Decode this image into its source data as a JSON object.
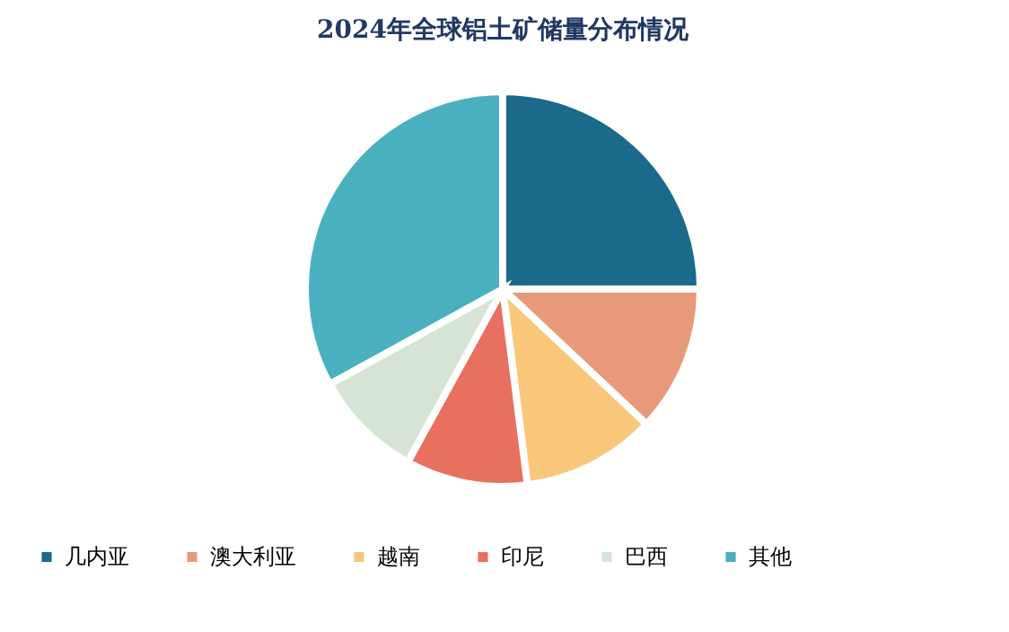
{
  "chart_data": {
    "type": "pie",
    "title": "2024年全球铝土矿储量分布情况",
    "categories": [
      "几内亚",
      "澳大利亚",
      "越南",
      "印尼",
      "巴西",
      "其他"
    ],
    "values": [
      25,
      12,
      11,
      10,
      9,
      33
    ],
    "colors": [
      "#1b6a8c",
      "#e8997a",
      "#f9c77a",
      "#e8705f",
      "#d5e4d5",
      "#4ab0bf"
    ],
    "legend": "bottom"
  }
}
